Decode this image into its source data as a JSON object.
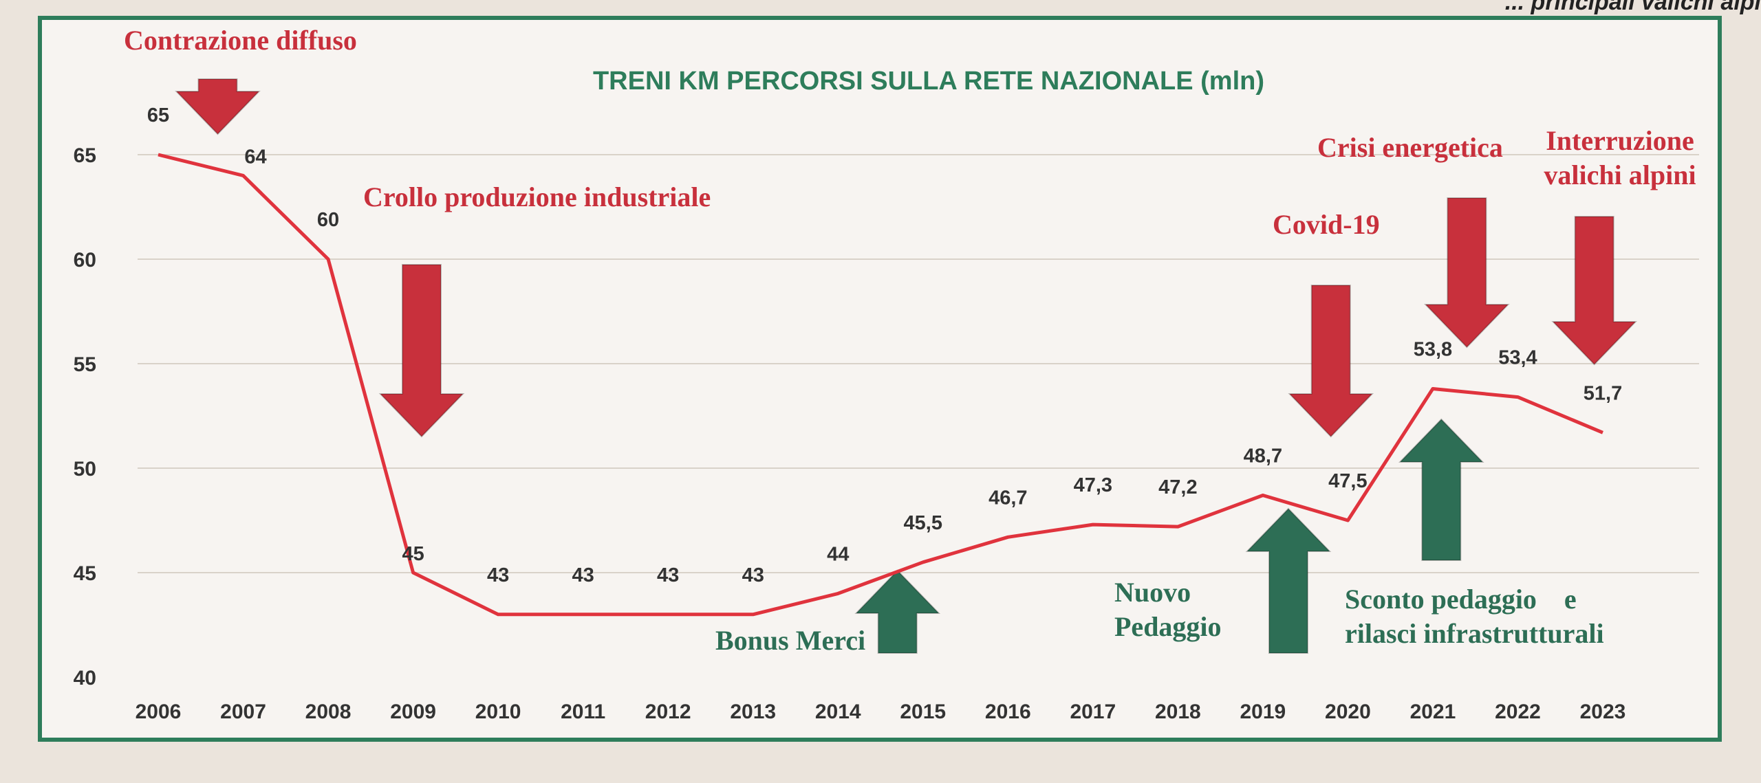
{
  "header_fragment": "... principali valichi alpi",
  "colors": {
    "line": "#e0333d",
    "red_arrow": "#c8303c",
    "green_arrow": "#2d6e55",
    "frame": "#2e7d5b",
    "red_text": "#c8303c",
    "green_text": "#2d6e55"
  },
  "chart_data": {
    "type": "line",
    "title": "TRENI KM PERCORSI SULLA RETE NAZIONALE (mln)",
    "x": [
      2006,
      2007,
      2008,
      2009,
      2010,
      2011,
      2012,
      2013,
      2014,
      2015,
      2016,
      2017,
      2018,
      2019,
      2020,
      2021,
      2022,
      2023
    ],
    "x_labels": [
      "2006",
      "2007",
      "2008",
      "2009",
      "2010",
      "2011",
      "2012",
      "2013",
      "2014",
      "2015",
      "2016",
      "2017",
      "2018",
      "2019",
      "2020",
      "2021",
      "2022",
      "2023"
    ],
    "values": [
      65,
      64,
      60,
      45,
      43,
      43,
      43,
      43,
      44,
      45.5,
      46.7,
      47.3,
      47.2,
      48.7,
      47.5,
      53.8,
      53.4,
      51.7
    ],
    "data_labels": [
      "65",
      "64",
      "60",
      "45",
      "43",
      "43",
      "43",
      "43",
      "44",
      "45,5",
      "46,7",
      "47,3",
      "47,2",
      "48,7",
      "47,5",
      "53,8",
      "53,4",
      "51,7"
    ],
    "ylim": [
      40,
      65
    ],
    "y_ticks": [
      "40",
      "45",
      "50",
      "55",
      "60",
      "65"
    ],
    "grid": true,
    "annotations": [
      {
        "text": "Contrazione diffuso",
        "color": "red",
        "arrow": "down",
        "year": 2006.7
      },
      {
        "text": "Crollo produzione industriale",
        "color": "red",
        "arrow": "down",
        "year": 2009.1
      },
      {
        "text": "Covid-19",
        "color": "red",
        "arrow": "down",
        "year": 2019.8
      },
      {
        "text": "Crisi energetica",
        "color": "red",
        "arrow": "down",
        "year": 2021.4
      },
      {
        "lines": [
          "Interruzione",
          "valichi alpini"
        ],
        "color": "red",
        "arrow": "down",
        "year": 2022.9
      },
      {
        "text": "Bonus Merci",
        "color": "green",
        "arrow": "up",
        "year": 2014.7
      },
      {
        "lines": [
          "Nuovo",
          "Pedaggio"
        ],
        "color": "green",
        "arrow": "up",
        "year": 2019.3
      },
      {
        "lines": [
          "Sconto pedaggio    e",
          "rilasci infrastrutturali"
        ],
        "color": "green",
        "arrow": "up",
        "year": 2021.1
      }
    ]
  }
}
